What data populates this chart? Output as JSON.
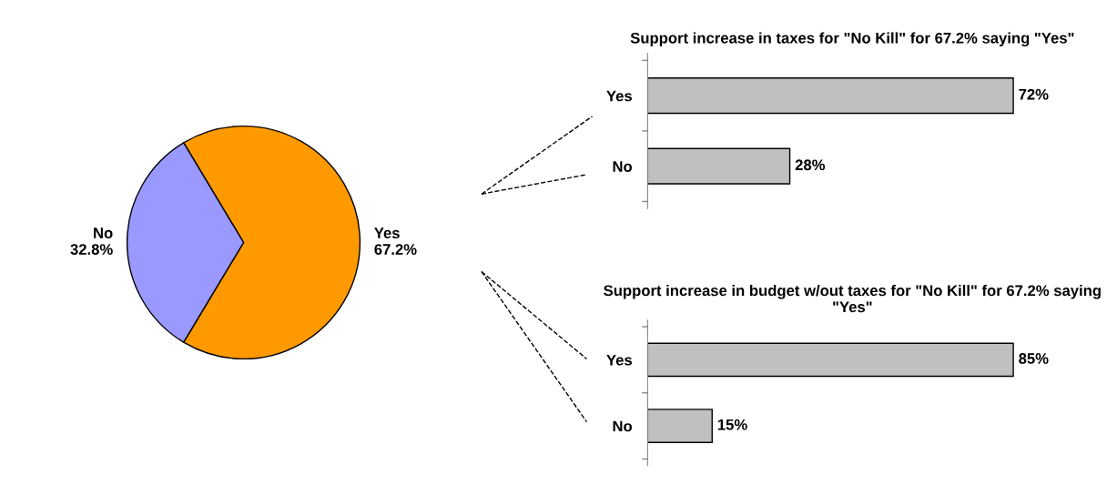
{
  "chart_data": [
    {
      "type": "pie",
      "categories": [
        "Yes",
        "No"
      ],
      "values": [
        67.2,
        32.8
      ],
      "colors": [
        "#ff9900",
        "#9999ff"
      ],
      "value_labels": [
        "67.2%",
        "32.8%"
      ]
    },
    {
      "type": "bar",
      "orientation": "horizontal",
      "title": "Support increase in taxes for \"No Kill\" for 67.2% saying \"Yes\"",
      "categories": [
        "Yes",
        "No"
      ],
      "values": [
        72,
        28
      ],
      "color": "#c0c0c0",
      "value_labels": [
        "72%",
        "28%"
      ],
      "tick_labels": "y",
      "grid": false
    },
    {
      "type": "bar",
      "orientation": "horizontal",
      "title": "Support increase in budget w/out taxes for \"No Kill\" for 67.2% saying \"Yes\"",
      "categories": [
        "Yes",
        "No"
      ],
      "values": [
        85,
        15
      ],
      "color": "#c0c0c0",
      "value_labels": [
        "85%",
        "15%"
      ],
      "tick_labels": "y",
      "grid": false
    }
  ]
}
